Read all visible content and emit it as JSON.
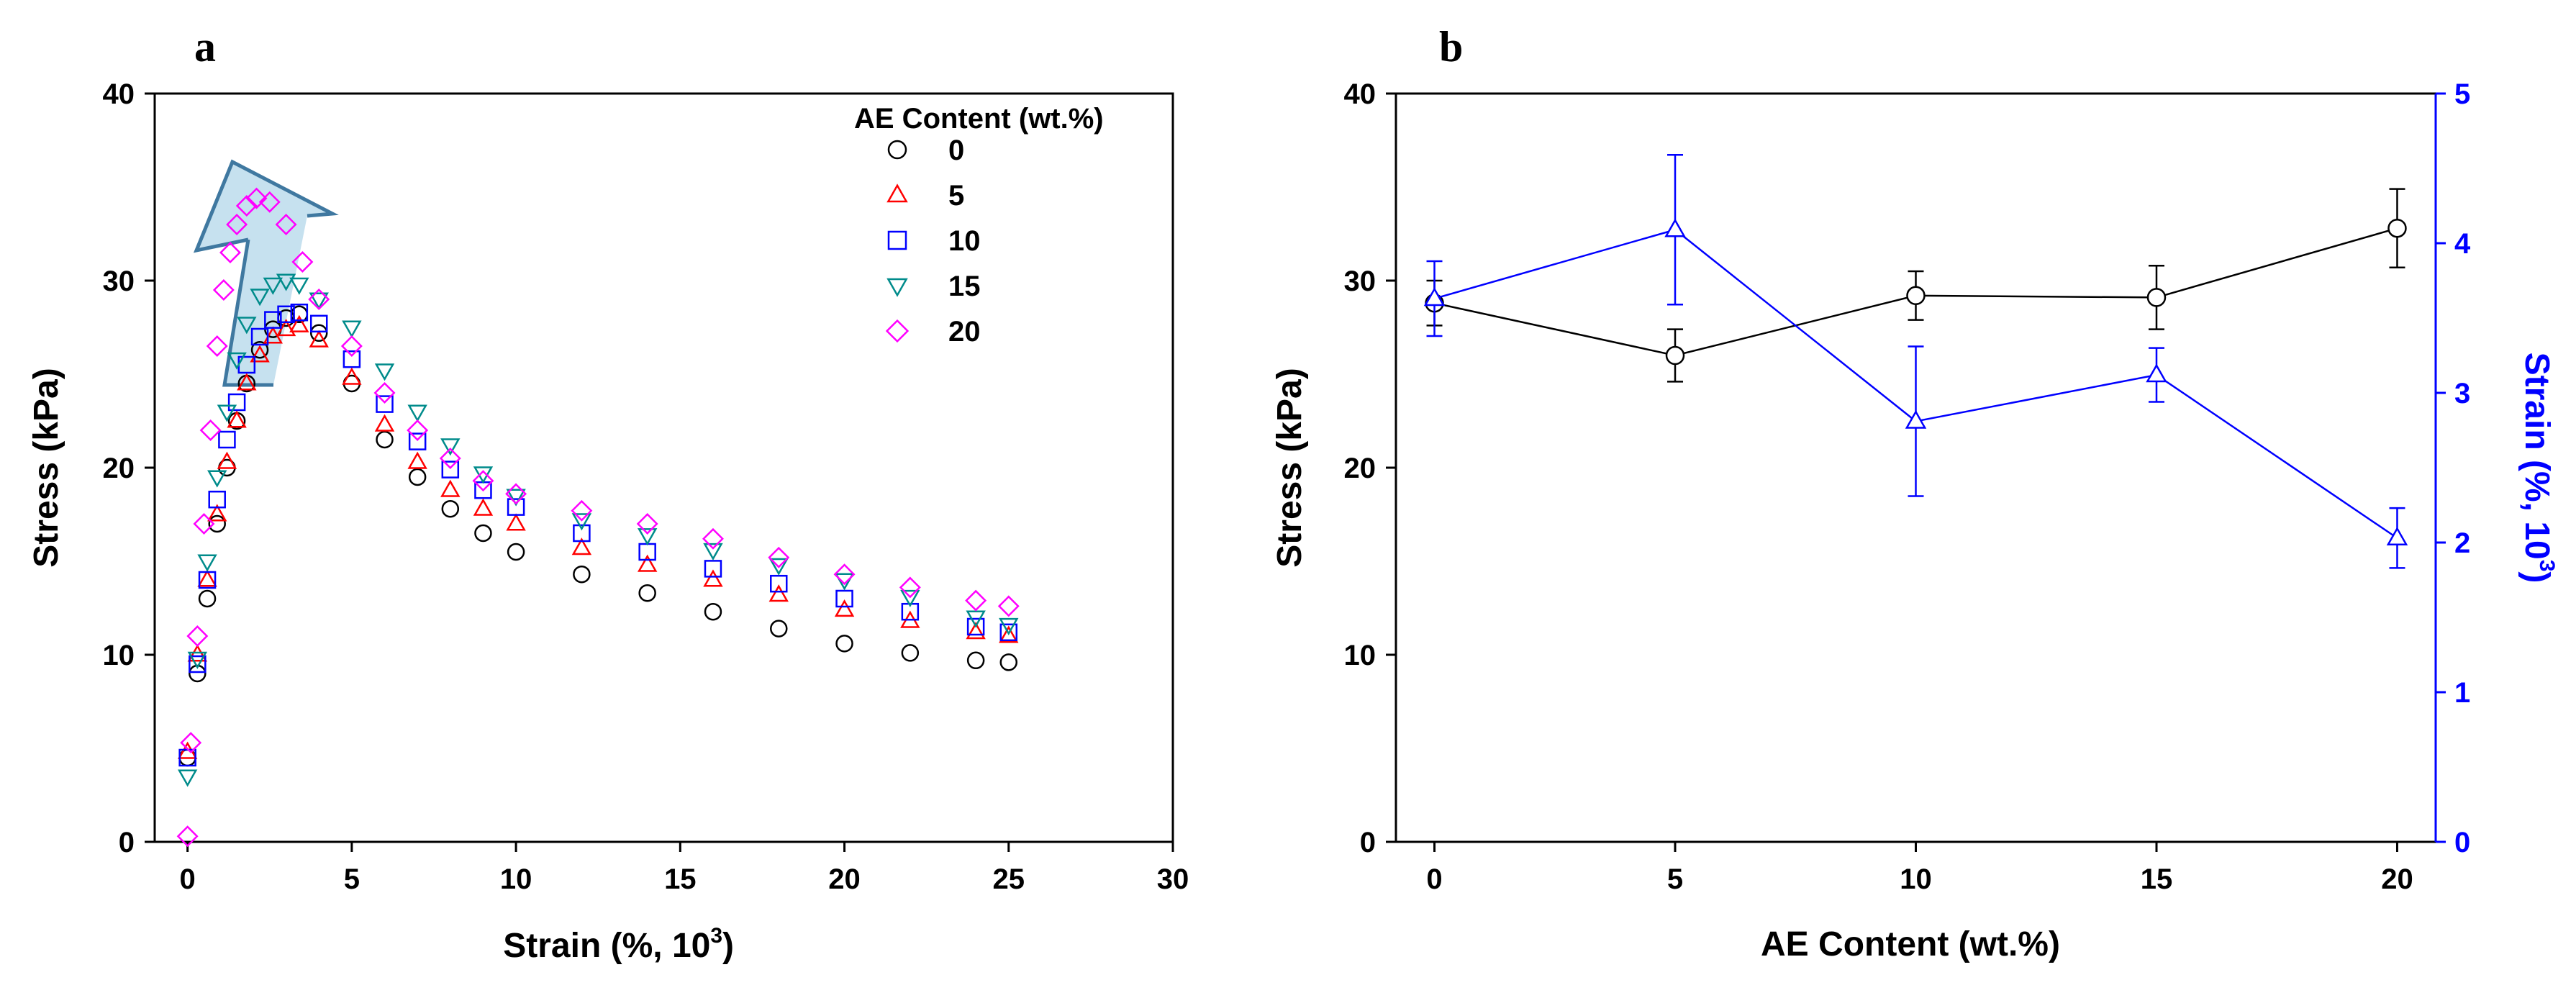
{
  "panels": {
    "a": {
      "letter": "a",
      "x_label": "Strain (%, 10",
      "x_label_sup": "3",
      "x_label_close": ")",
      "y_label": "Stress (kPa)",
      "x_ticks": [
        "0",
        "5",
        "10",
        "15",
        "20",
        "25",
        "30"
      ],
      "y_ticks": [
        "0",
        "10",
        "20",
        "30",
        "40"
      ],
      "legend_title": "AE Content (wt.%)"
    },
    "b": {
      "letter": "b",
      "x_label": "AE Content (wt.%)",
      "y_label": "Stress (kPa)",
      "y2_label": "Strain (%, 10",
      "y2_label_sup": "3",
      "y2_label_close": ")",
      "x_ticks": [
        "0",
        "5",
        "10",
        "15",
        "20"
      ],
      "y_ticks": [
        "0",
        "10",
        "20",
        "30",
        "40"
      ],
      "y2_ticks": [
        "0",
        "1",
        "2",
        "3",
        "4",
        "5"
      ]
    }
  },
  "chart_data": [
    {
      "type": "scatter",
      "title": "",
      "xlabel": "Strain (%, 10^3)",
      "ylabel": "Stress (kPa)",
      "xlim": [
        -1,
        30
      ],
      "ylim": [
        0,
        40
      ],
      "legend_title": "AE Content (wt.%)",
      "legend_position": "top-right",
      "annotation": "arrow pointing toward the rising peak stress with AE content",
      "series": [
        {
          "name": "0",
          "marker": "circle",
          "color": "#000000",
          "x": [
            0,
            0.3,
            0.6,
            0.9,
            1.2,
            1.5,
            1.8,
            2.2,
            2.6,
            3,
            3.4,
            4,
            5,
            6,
            7,
            8,
            9,
            10,
            12,
            14,
            16,
            18,
            20,
            22,
            24,
            25
          ],
          "y": [
            4.5,
            9,
            13,
            17,
            20,
            22.5,
            24.5,
            26.3,
            27.4,
            28,
            28.2,
            27.2,
            24.5,
            21.5,
            19.5,
            17.8,
            16.5,
            15.5,
            14.3,
            13.3,
            12.3,
            11.4,
            10.6,
            10.1,
            9.7,
            9.6
          ]
        },
        {
          "name": "5",
          "marker": "triangle-up",
          "color": "#ff0000",
          "x": [
            0,
            0.3,
            0.6,
            0.9,
            1.2,
            1.5,
            1.8,
            2.2,
            2.6,
            3,
            3.4,
            4,
            5,
            6,
            7,
            8,
            9,
            10,
            12,
            14,
            16,
            18,
            20,
            22,
            24,
            25
          ],
          "y": [
            4.8,
            10,
            14,
            17.5,
            20.3,
            22.5,
            24.5,
            26,
            27,
            27.4,
            27.6,
            26.8,
            24.8,
            22.3,
            20.3,
            18.8,
            17.8,
            17,
            15.7,
            14.8,
            14,
            13.2,
            12.4,
            11.8,
            11.2,
            11
          ]
        },
        {
          "name": "10",
          "marker": "square",
          "color": "#0000ff",
          "x": [
            0,
            0.3,
            0.6,
            0.9,
            1.2,
            1.5,
            1.8,
            2.2,
            2.6,
            3,
            3.4,
            4,
            5,
            6,
            7,
            8,
            9,
            10,
            12,
            14,
            16,
            18,
            20,
            22,
            24,
            25
          ],
          "y": [
            4.5,
            9.5,
            14,
            18.3,
            21.5,
            23.5,
            25.5,
            27,
            27.9,
            28.2,
            28.3,
            27.7,
            25.8,
            23.4,
            21.4,
            19.9,
            18.8,
            17.9,
            16.5,
            15.5,
            14.6,
            13.8,
            13,
            12.3,
            11.5,
            11.2
          ]
        },
        {
          "name": "15",
          "marker": "triangle-down",
          "color": "#008b8b",
          "x": [
            0,
            0.3,
            0.6,
            0.9,
            1.2,
            1.5,
            1.8,
            2.2,
            2.6,
            3,
            3.4,
            4,
            5,
            6,
            7,
            8,
            9,
            10,
            12,
            14,
            16,
            18,
            20,
            22,
            24,
            25
          ],
          "y": [
            3.5,
            9.8,
            15,
            19.5,
            23,
            25.8,
            27.7,
            29.2,
            29.8,
            30,
            29.8,
            29,
            27.5,
            25.2,
            23,
            21.2,
            19.7,
            18.5,
            17.2,
            16.4,
            15.6,
            14.8,
            14,
            13.1,
            12,
            11.6
          ]
        },
        {
          "name": "20",
          "marker": "diamond",
          "color": "#ff00ff",
          "x": [
            0,
            0.1,
            0.3,
            0.5,
            0.7,
            0.9,
            1.1,
            1.3,
            1.5,
            1.8,
            2.1,
            2.5,
            3,
            3.5,
            4,
            5,
            6,
            7,
            8,
            9,
            10,
            12,
            14,
            16,
            18,
            20,
            22,
            24,
            25
          ],
          "y": [
            0.3,
            5.3,
            11,
            17,
            22,
            26.5,
            29.5,
            31.5,
            33,
            34,
            34.4,
            34.2,
            33,
            31,
            29,
            26.5,
            24,
            22,
            20.5,
            19.3,
            18.6,
            17.7,
            17,
            16.2,
            15.2,
            14.3,
            13.6,
            12.9,
            12.6
          ]
        }
      ]
    },
    {
      "type": "line",
      "title": "",
      "xlabel": "AE Content (wt.%)",
      "ylabel": "Stress (kPa)",
      "y2label": "Strain (%, 10^3)",
      "x": [
        0,
        5,
        10,
        15,
        20
      ],
      "xlim": [
        -0.8,
        20.8
      ],
      "ylim": [
        0,
        40
      ],
      "y2lim": [
        0,
        5
      ],
      "series": [
        {
          "name": "Stress",
          "axis": "left",
          "marker": "circle",
          "color": "#000000",
          "values": [
            28.8,
            26.0,
            29.2,
            29.1,
            32.8
          ],
          "errors": [
            1.2,
            1.4,
            1.3,
            1.7,
            2.1
          ]
        },
        {
          "name": "Strain",
          "axis": "right",
          "marker": "triangle-up",
          "color": "#0000ff",
          "values": [
            3.63,
            4.09,
            2.81,
            3.12,
            2.03
          ],
          "errors": [
            0.25,
            0.5,
            0.5,
            0.18,
            0.2
          ]
        }
      ]
    }
  ]
}
